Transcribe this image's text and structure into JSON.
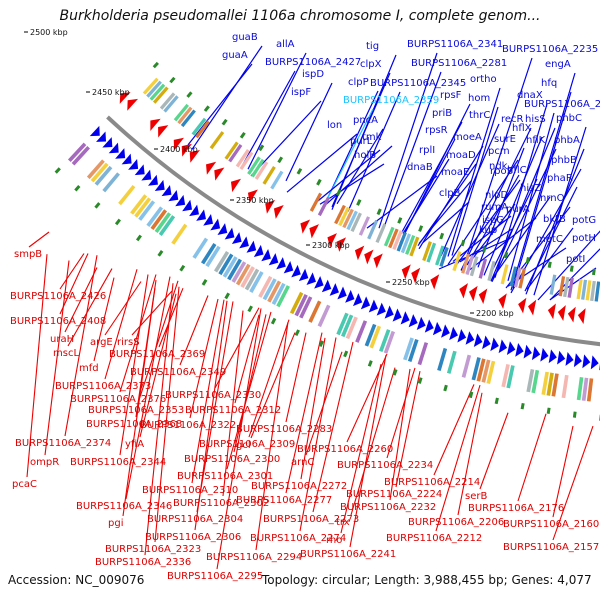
{
  "title": "Burkholderia pseudomallei 1106a chromosome I, complete genom...",
  "footer": {
    "accession": "Accession: NC_009076",
    "stats": "Topology: circular; Length: 3,988,455 bp; Genes: 4,077"
  },
  "colors": {
    "forward_strand": "#0000ee",
    "reverse_strand": "#ee0000",
    "highlight_label": "#1ec3ff",
    "tick_marker": "#2a8a2a",
    "backbone": "#8a8a8a"
  },
  "kbp_ticks": [
    "2500 kbp",
    "2450 kbp",
    "2400 kbp",
    "2350 kbp",
    "2300 kbp",
    "2250 kbp",
    "2200 kbp"
  ],
  "forward_labels": [
    {
      "text": "guaB",
      "highlight": false
    },
    {
      "text": "guaA",
      "highlight": false
    },
    {
      "text": "allA",
      "highlight": false
    },
    {
      "text": "BURPS1106A_2427",
      "highlight": false
    },
    {
      "text": "ispD",
      "highlight": false
    },
    {
      "text": "ispF",
      "highlight": false
    },
    {
      "text": "tig",
      "highlight": false
    },
    {
      "text": "clpX",
      "highlight": false
    },
    {
      "text": "clpP",
      "highlight": false
    },
    {
      "text": "BURPS1106A_2359",
      "highlight": true
    },
    {
      "text": "lon",
      "highlight": false
    },
    {
      "text": "purL",
      "highlight": false
    },
    {
      "text": "BURPS1106A_2341",
      "highlight": false
    },
    {
      "text": "BURPS1106A_2345",
      "highlight": false
    },
    {
      "text": "pncA",
      "highlight": false
    },
    {
      "text": "tmk",
      "highlight": false
    },
    {
      "text": "holB",
      "highlight": false
    },
    {
      "text": "BURPS1106A_2281",
      "highlight": false
    },
    {
      "text": "ortho",
      "highlight": false
    },
    {
      "text": "hom",
      "highlight": false
    },
    {
      "text": "rpsF",
      "highlight": false
    },
    {
      "text": "priB",
      "highlight": false
    },
    {
      "text": "thrC",
      "highlight": false
    },
    {
      "text": "rpsR",
      "highlight": false
    },
    {
      "text": "rplI",
      "highlight": false
    },
    {
      "text": "dnaB",
      "highlight": false
    },
    {
      "text": "moeA",
      "highlight": false
    },
    {
      "text": "moaD",
      "highlight": false
    },
    {
      "text": "moaE",
      "highlight": false
    },
    {
      "text": "clpB",
      "highlight": false
    },
    {
      "text": "BURPS1106A_2235",
      "highlight": false
    },
    {
      "text": "engA",
      "highlight": false
    },
    {
      "text": "hfq",
      "highlight": false
    },
    {
      "text": "dnaX",
      "highlight": false
    },
    {
      "text": "BURPS1106A_2218",
      "highlight": false
    },
    {
      "text": "recR",
      "highlight": false
    },
    {
      "text": "hisS",
      "highlight": false
    },
    {
      "text": "hflX",
      "highlight": false
    },
    {
      "text": "phbC",
      "highlight": false
    },
    {
      "text": "surE",
      "highlight": false
    },
    {
      "text": "pcm",
      "highlight": false
    },
    {
      "text": "hflK",
      "highlight": false
    },
    {
      "text": "phbA",
      "highlight": false
    },
    {
      "text": "ndk",
      "highlight": false
    },
    {
      "text": "hflC",
      "highlight": false
    },
    {
      "text": "phbB",
      "highlight": false
    },
    {
      "text": "rpoS",
      "highlight": false
    },
    {
      "text": "hisZ",
      "highlight": false
    },
    {
      "text": "phaR",
      "highlight": false
    },
    {
      "text": "nlpD",
      "highlight": false
    },
    {
      "text": "purA",
      "highlight": false
    },
    {
      "text": "nrnO",
      "highlight": false
    },
    {
      "text": "rumA",
      "highlight": false
    },
    {
      "text": "ispG",
      "highlight": false
    },
    {
      "text": "bktB",
      "highlight": false
    },
    {
      "text": "kup",
      "highlight": false
    },
    {
      "text": "potG",
      "highlight": false
    },
    {
      "text": "metC",
      "highlight": false
    },
    {
      "text": "potH",
      "highlight": false
    },
    {
      "text": "potI",
      "highlight": false
    }
  ],
  "reverse_labels": [
    "smpB",
    "BURPS1106A_2426",
    "BURPS1106A_2408",
    "uraH",
    "argE",
    "rirsS",
    "mscL",
    "mfd",
    "BURPS1106A_2369",
    "BURPS1106A_2349",
    "BURPS1106A_2373",
    "BURPS1106A_2376",
    "BURPS1106A_2353",
    "BURPS1106A_2330",
    "BURPS1106A_2368",
    "BURPS1106A_2312",
    "BURPS1106A_2322",
    "BURPS1106A_2374",
    "yfiA",
    "BURPS1106A_2309",
    "gcl",
    "BURPS1106A_2283",
    "ompR",
    "BURPS1106A_2344",
    "BURPS1106A_2300",
    "arnC",
    "BURPS1106A_2260",
    "BURPS1106A_2301",
    "pcaC",
    "BURPS1106A_2272",
    "BURPS1106A_2234",
    "BURPS1106A_2310",
    "BURPS1106A_2277",
    "BURPS1106A_2214",
    "BURPS1106A_2346",
    "BURPS1106A_2302",
    "BURPS1106A_2224",
    "serB",
    "pgi",
    "BURPS1106A_2304",
    "BURPS1106A_2273",
    "trx",
    "BURPS1106A_2232",
    "BURPS1106A_2206",
    "BURPS1106A_2176",
    "BURPS1106A_2306",
    "BURPS1106A_2274",
    "rho",
    "BURPS1106A_2212",
    "BURPS1106A_2160",
    "BURPS1106A_2323",
    "BURPS1106A_2336",
    "BURPS1106A_2294",
    "BURPS1106A_2241",
    "BURPS1106A_2157",
    "BURPS1106A_2295"
  ]
}
